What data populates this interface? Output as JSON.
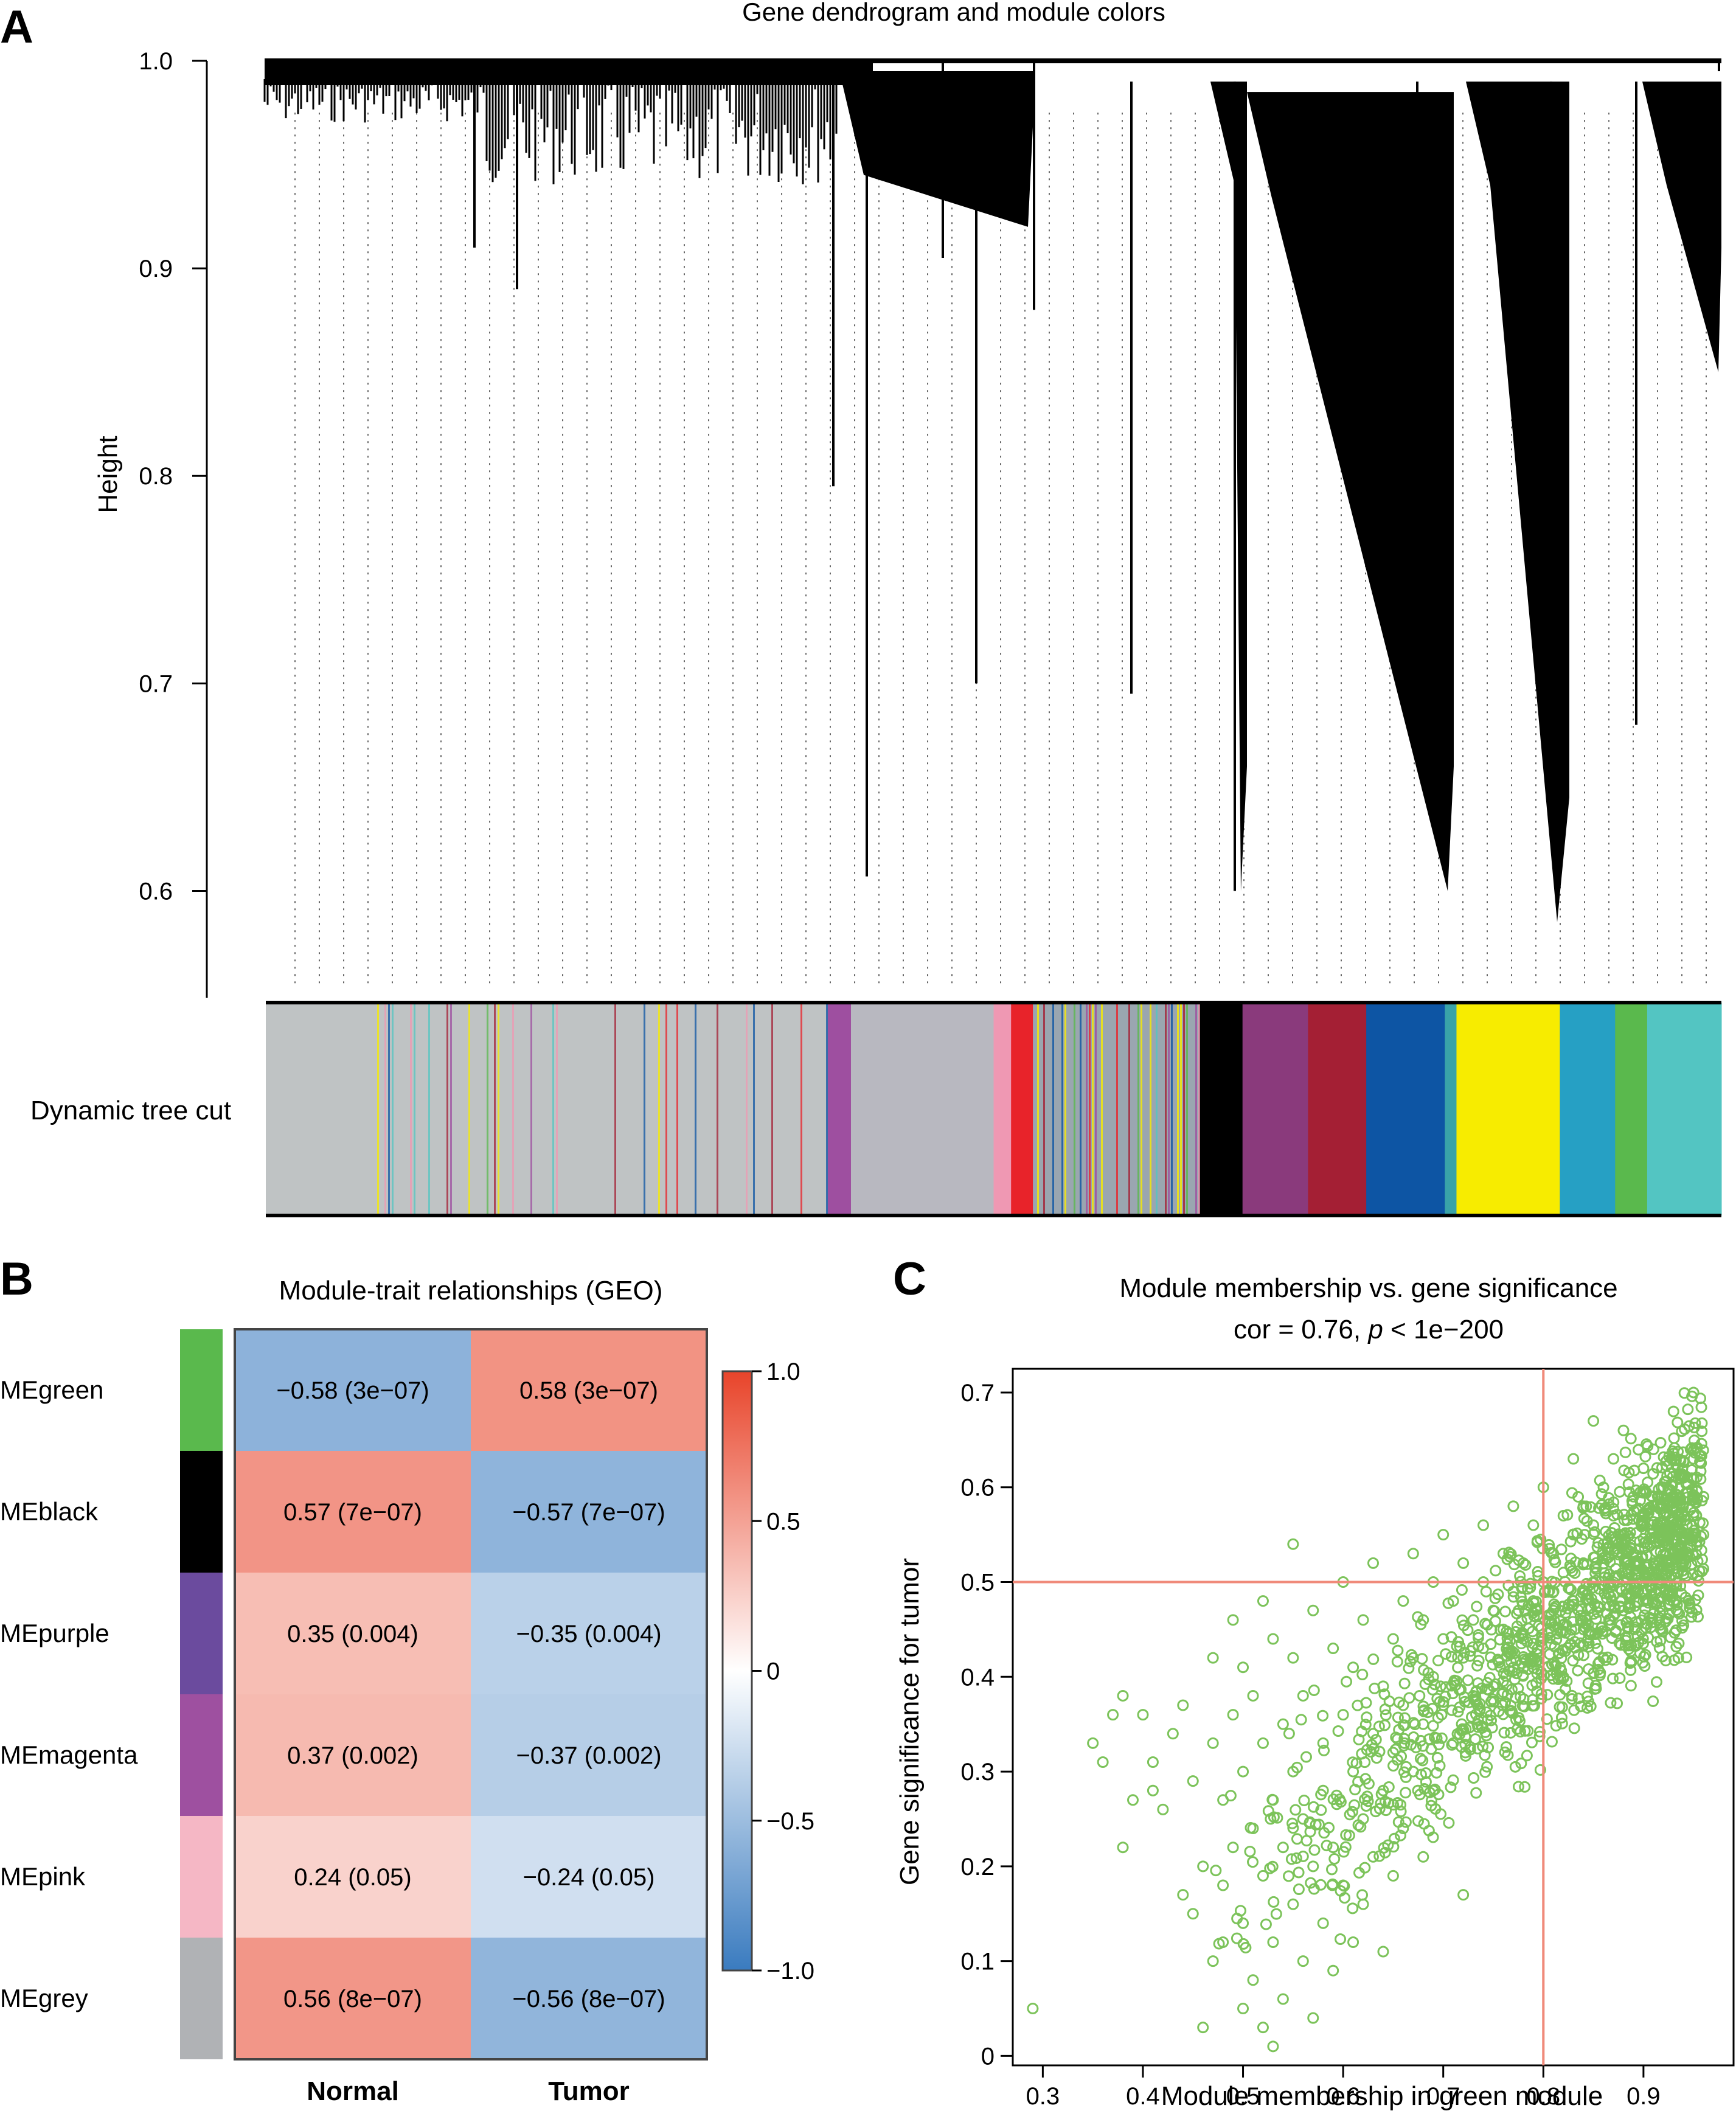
{
  "panel_labels": {
    "a": "A",
    "b": "B",
    "c": "C"
  },
  "chart_data": [
    {
      "type": "dendrogram",
      "title": "Gene dendrogram and module colors",
      "ylabel": "Height",
      "ylim": [
        0.55,
        1.0
      ],
      "yticks": [
        0.6,
        0.7,
        0.8,
        0.9,
        1.0
      ],
      "ytick_labels": [
        "0.6",
        "0.7",
        "0.8",
        "0.9",
        "1.0"
      ],
      "color_bar_label": "Dynamic tree cut",
      "module_bands": [
        {
          "color": "#bfc3c4",
          "share": 0.386
        },
        {
          "color": "#9e4fa0",
          "share": 0.016
        },
        {
          "color": "#b8b8c0",
          "share": 0.098
        },
        {
          "color": "#ef98b3",
          "share": 0.012
        },
        {
          "color": "#e8232a",
          "share": 0.015
        },
        {
          "color": "#9aa6b0",
          "share": 0.114
        },
        {
          "color": "#000000",
          "share": 0.03
        },
        {
          "color": "#8a3a7c",
          "share": 0.045
        },
        {
          "color": "#a41f34",
          "share": 0.04
        },
        {
          "color": "#0d55a4",
          "share": 0.054
        },
        {
          "color": "#39a3a8",
          "share": 0.008
        },
        {
          "color": "#f7ec00",
          "share": 0.071
        },
        {
          "color": "#26a0c4",
          "share": 0.038
        },
        {
          "color": "#5ab94d",
          "share": 0.022
        },
        {
          "color": "#53c5c2",
          "share": 0.051
        }
      ]
    },
    {
      "type": "heatmap",
      "title": "Module-trait relationships (GEO)",
      "rows": [
        "MEgreen",
        "MEblack",
        "MEpurple",
        "MEmagenta",
        "MEpink",
        "MEgrey"
      ],
      "row_colors": [
        "#5ab94d",
        "#000000",
        "#6b4b9e",
        "#9e50a0",
        "#f5b7c5",
        "#b0b2b5"
      ],
      "columns": [
        "Normal",
        "Tumor"
      ],
      "values": [
        [
          -0.58,
          0.58
        ],
        [
          0.57,
          -0.57
        ],
        [
          0.35,
          -0.35
        ],
        [
          0.37,
          -0.37
        ],
        [
          0.24,
          -0.24
        ],
        [
          0.56,
          -0.56
        ]
      ],
      "labels": [
        [
          "−0.58 (3e−07)",
          "0.58 (3e−07)"
        ],
        [
          "0.57 (7e−07)",
          "−0.57 (7e−07)"
        ],
        [
          "0.35 (0.004)",
          "−0.35 (0.004)"
        ],
        [
          "0.37 (0.002)",
          "−0.37 (0.002)"
        ],
        [
          "0.24 (0.05)",
          "−0.24 (0.05)"
        ],
        [
          "0.56 (8e−07)",
          "−0.56 (8e−07)"
        ]
      ],
      "color_scale": {
        "range": [
          -1,
          1
        ],
        "low": "#3a7bbf",
        "mid": "#ffffff",
        "high": "#e8442a",
        "tick_labels": [
          "1.0",
          "0.5",
          "0",
          "−0.5",
          "−1.0"
        ]
      }
    },
    {
      "type": "scatter",
      "title": "Module membership vs. gene significance",
      "subtitle_prefix": "cor = 0.76, ",
      "subtitle_italic": "p",
      "subtitle_suffix": " < 1e−200",
      "xlabel": "Module membership in green module",
      "ylabel": "Gene significance for tumor",
      "xlim": [
        0.27,
        0.99
      ],
      "ylim": [
        -0.01,
        0.725
      ],
      "xticks": [
        0.3,
        0.4,
        0.5,
        0.6,
        0.7,
        0.8,
        0.9
      ],
      "xtick_labels": [
        "0.3",
        "0.4",
        "0.5",
        "0.6",
        "0.7",
        "0.8",
        "0.9"
      ],
      "yticks": [
        0,
        0.1,
        0.2,
        0.3,
        0.4,
        0.5,
        0.6,
        0.7
      ],
      "ytick_labels": [
        "0",
        "0.1",
        "0.2",
        "0.3",
        "0.4",
        "0.5",
        "0.6",
        "0.7"
      ],
      "reference_lines": {
        "x": 0.8,
        "y": 0.5
      },
      "point_color": "#7cc35a",
      "reference_color": "#f08a7a",
      "points": [
        [
          0.29,
          0.05
        ],
        [
          0.35,
          0.33
        ],
        [
          0.36,
          0.31
        ],
        [
          0.37,
          0.36
        ],
        [
          0.38,
          0.38
        ],
        [
          0.38,
          0.22
        ],
        [
          0.39,
          0.27
        ],
        [
          0.4,
          0.36
        ],
        [
          0.41,
          0.31
        ],
        [
          0.41,
          0.28
        ],
        [
          0.42,
          0.26
        ],
        [
          0.43,
          0.34
        ],
        [
          0.44,
          0.17
        ],
        [
          0.44,
          0.37
        ],
        [
          0.45,
          0.15
        ],
        [
          0.45,
          0.29
        ],
        [
          0.46,
          0.2
        ],
        [
          0.46,
          0.03
        ],
        [
          0.47,
          0.1
        ],
        [
          0.47,
          0.33
        ],
        [
          0.47,
          0.42
        ],
        [
          0.48,
          0.18
        ],
        [
          0.48,
          0.12
        ],
        [
          0.48,
          0.27
        ],
        [
          0.49,
          0.46
        ],
        [
          0.49,
          0.22
        ],
        [
          0.49,
          0.36
        ],
        [
          0.5,
          0.05
        ],
        [
          0.5,
          0.14
        ],
        [
          0.5,
          0.3
        ],
        [
          0.5,
          0.41
        ],
        [
          0.51,
          0.24
        ],
        [
          0.51,
          0.08
        ],
        [
          0.51,
          0.38
        ],
        [
          0.52,
          0.48
        ],
        [
          0.52,
          0.19
        ],
        [
          0.52,
          0.33
        ],
        [
          0.52,
          0.03
        ],
        [
          0.53,
          0.12
        ],
        [
          0.53,
          0.27
        ],
        [
          0.53,
          0.44
        ],
        [
          0.53,
          0.01
        ],
        [
          0.54,
          0.22
        ],
        [
          0.54,
          0.35
        ],
        [
          0.54,
          0.06
        ],
        [
          0.55,
          0.3
        ],
        [
          0.55,
          0.16
        ],
        [
          0.55,
          0.54
        ],
        [
          0.55,
          0.42
        ],
        [
          0.56,
          0.25
        ],
        [
          0.56,
          0.1
        ],
        [
          0.56,
          0.38
        ],
        [
          0.57,
          0.2
        ],
        [
          0.57,
          0.47
        ],
        [
          0.57,
          0.04
        ],
        [
          0.58,
          0.33
        ],
        [
          0.58,
          0.14
        ],
        [
          0.58,
          0.28
        ],
        [
          0.59,
          0.43
        ],
        [
          0.59,
          0.22
        ],
        [
          0.59,
          0.09
        ],
        [
          0.6,
          0.36
        ],
        [
          0.6,
          0.18
        ],
        [
          0.6,
          0.5
        ],
        [
          0.61,
          0.3
        ],
        [
          0.61,
          0.12
        ],
        [
          0.61,
          0.41
        ],
        [
          0.62,
          0.25
        ],
        [
          0.62,
          0.46
        ],
        [
          0.62,
          0.16
        ],
        [
          0.63,
          0.34
        ],
        [
          0.63,
          0.21
        ],
        [
          0.63,
          0.52
        ],
        [
          0.64,
          0.39
        ],
        [
          0.64,
          0.28
        ],
        [
          0.64,
          0.11
        ],
        [
          0.65,
          0.44
        ],
        [
          0.65,
          0.32
        ],
        [
          0.65,
          0.19
        ],
        [
          0.66,
          0.48
        ],
        [
          0.66,
          0.37
        ],
        [
          0.66,
          0.24
        ],
        [
          0.67,
          0.42
        ],
        [
          0.67,
          0.3
        ],
        [
          0.67,
          0.53
        ],
        [
          0.68,
          0.46
        ],
        [
          0.68,
          0.35
        ],
        [
          0.68,
          0.21
        ],
        [
          0.69,
          0.4
        ],
        [
          0.69,
          0.5
        ],
        [
          0.69,
          0.28
        ],
        [
          0.7,
          0.44
        ],
        [
          0.7,
          0.37
        ],
        [
          0.7,
          0.55
        ],
        [
          0.71,
          0.48
        ],
        [
          0.71,
          0.33
        ],
        [
          0.72,
          0.42
        ],
        [
          0.72,
          0.17
        ],
        [
          0.72,
          0.52
        ],
        [
          0.73,
          0.46
        ],
        [
          0.73,
          0.38
        ],
        [
          0.74,
          0.5
        ],
        [
          0.74,
          0.43
        ],
        [
          0.74,
          0.56
        ],
        [
          0.75,
          0.47
        ],
        [
          0.75,
          0.39
        ],
        [
          0.76,
          0.53
        ],
        [
          0.76,
          0.45
        ],
        [
          0.77,
          0.49
        ],
        [
          0.77,
          0.58
        ],
        [
          0.78,
          0.44
        ],
        [
          0.78,
          0.52
        ],
        [
          0.79,
          0.48
        ],
        [
          0.79,
          0.56
        ],
        [
          0.8,
          0.5
        ],
        [
          0.8,
          0.44
        ],
        [
          0.8,
          0.6
        ],
        [
          0.81,
          0.53
        ],
        [
          0.81,
          0.47
        ],
        [
          0.82,
          0.57
        ],
        [
          0.82,
          0.51
        ],
        [
          0.82,
          0.4
        ],
        [
          0.83,
          0.55
        ],
        [
          0.83,
          0.48
        ],
        [
          0.83,
          0.63
        ],
        [
          0.84,
          0.52
        ],
        [
          0.84,
          0.58
        ],
        [
          0.84,
          0.45
        ],
        [
          0.85,
          0.56
        ],
        [
          0.85,
          0.5
        ],
        [
          0.85,
          0.67
        ],
        [
          0.86,
          0.54
        ],
        [
          0.86,
          0.6
        ],
        [
          0.86,
          0.42
        ],
        [
          0.87,
          0.57
        ],
        [
          0.87,
          0.5
        ],
        [
          0.87,
          0.63
        ],
        [
          0.88,
          0.55
        ],
        [
          0.88,
          0.66
        ],
        [
          0.88,
          0.47
        ],
        [
          0.89,
          0.59
        ],
        [
          0.89,
          0.53
        ],
        [
          0.9,
          0.56
        ],
        [
          0.9,
          0.62
        ],
        [
          0.9,
          0.48
        ],
        [
          0.91,
          0.58
        ],
        [
          0.91,
          0.52
        ],
        [
          0.91,
          0.64
        ],
        [
          0.92,
          0.56
        ],
        [
          0.92,
          0.6
        ],
        [
          0.93,
          0.54
        ],
        [
          0.93,
          0.68
        ],
        [
          0.93,
          0.58
        ],
        [
          0.94,
          0.61
        ],
        [
          0.94,
          0.52
        ],
        [
          0.95,
          0.57
        ],
        [
          0.95,
          0.7
        ],
        [
          0.95,
          0.63
        ],
        [
          0.96,
          0.59
        ],
        [
          0.96,
          0.55
        ]
      ]
    }
  ]
}
